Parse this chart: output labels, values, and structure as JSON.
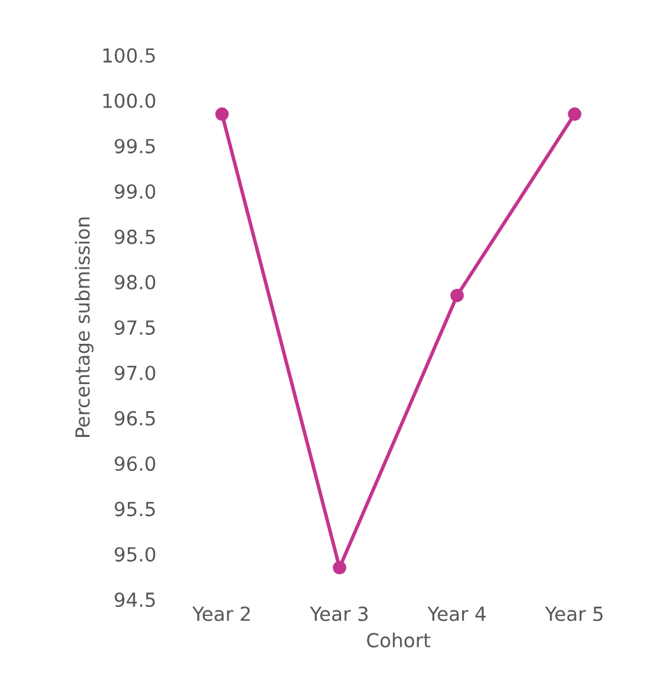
{
  "chart_data": {
    "type": "line",
    "xlabel": "Cohort",
    "ylabel": "Percentage submission",
    "categories": [
      "Year 2",
      "Year 3",
      "Year 4",
      "Year 5"
    ],
    "series": [
      {
        "color": "#c4338e",
        "values": [
          99.85,
          94.85,
          97.85,
          99.85
        ]
      }
    ],
    "ylim": [
      94.5,
      100.5
    ],
    "yticks": [
      {
        "value": 94.5,
        "label": "94.5"
      },
      {
        "value": 95.0,
        "label": "95.0"
      },
      {
        "value": 95.5,
        "label": "95.5"
      },
      {
        "value": 96.0,
        "label": "96.0"
      },
      {
        "value": 96.5,
        "label": "96.5"
      },
      {
        "value": 97.0,
        "label": "97.0"
      },
      {
        "value": 97.5,
        "label": "97.5"
      },
      {
        "value": 98.0,
        "label": "98.0"
      },
      {
        "value": 98.5,
        "label": "98.5"
      },
      {
        "value": 99.0,
        "label": "99.0"
      },
      {
        "value": 99.5,
        "label": "99.5"
      },
      {
        "value": 100.0,
        "label": "100.0"
      },
      {
        "value": 100.5,
        "label": "100.5"
      }
    ],
    "marker": "circle",
    "line_style": "solid",
    "grid": false,
    "legend": false
  }
}
